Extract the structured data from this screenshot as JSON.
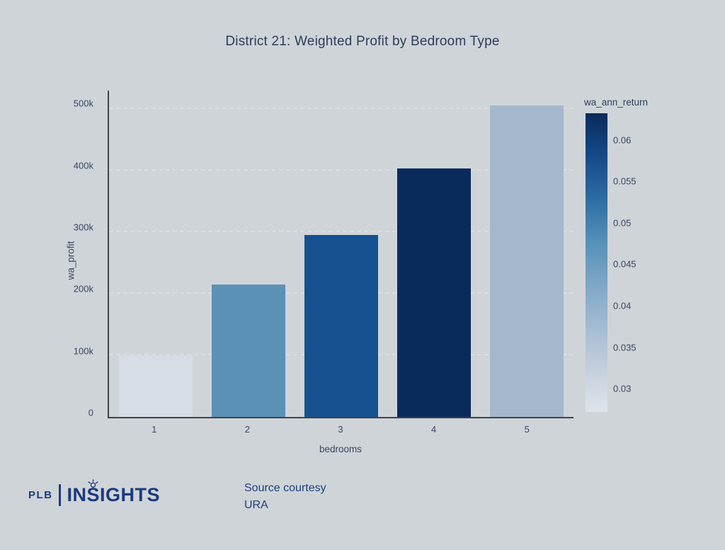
{
  "title": "District 21: Weighted Profit by Bedroom Type",
  "chart_data": {
    "type": "bar",
    "title": "District 21: Weighted Profit by Bedroom Type",
    "xlabel": "bedrooms",
    "ylabel": "wa_profit",
    "categories": [
      "1",
      "2",
      "3",
      "4",
      "5"
    ],
    "values": [
      100000,
      215000,
      296000,
      404000,
      506000
    ],
    "color_metric": "wa_ann_return",
    "color_values": [
      0.027,
      0.047,
      0.055,
      0.063,
      0.039
    ],
    "bar_colors": [
      "#d7dde6",
      "#5a91b5",
      "#15518f",
      "#0a2a5c",
      "#a4b7cd"
    ],
    "ylim": [
      0,
      530000
    ],
    "yticks": [
      {
        "label": "0",
        "value": 0
      },
      {
        "label": "100k",
        "value": 100000
      },
      {
        "label": "200k",
        "value": 200000
      },
      {
        "label": "300k",
        "value": 300000
      },
      {
        "label": "400k",
        "value": 400000
      },
      {
        "label": "500k",
        "value": 500000
      }
    ],
    "grid": "horizontal-dashed",
    "legend_position": "right-colorbar",
    "colorbar": {
      "title": "wa_ann_return",
      "range": [
        0.0272,
        0.0632
      ],
      "ticks": [
        {
          "label": "0.06",
          "value": 0.06
        },
        {
          "label": "0.055",
          "value": 0.055
        },
        {
          "label": "0.05",
          "value": 0.05
        },
        {
          "label": "0.045",
          "value": 0.045
        },
        {
          "label": "0.04",
          "value": 0.04
        },
        {
          "label": "0.035",
          "value": 0.035
        },
        {
          "label": "0.03",
          "value": 0.03
        }
      ],
      "gradient": [
        "#0a2a5c",
        "#16498a",
        "#2e6ba3",
        "#5590b8",
        "#7ea6c6",
        "#a3bcd2",
        "#c5cfdd",
        "#dfe4eb"
      ]
    }
  },
  "footer": {
    "logo": {
      "plb": "PLB",
      "insights": "INSIGHTS"
    },
    "source": {
      "line1": "Source courtesy",
      "line2": "URA"
    }
  },
  "colors": {
    "background": "#cfd4d9",
    "axis_line": "#3f4348",
    "gridline": "#dadee3",
    "title_text": "#2e3c59",
    "tick_text": "#39455f",
    "logo_navy": "#1b3a7e",
    "source_navy": "#1d4080"
  }
}
